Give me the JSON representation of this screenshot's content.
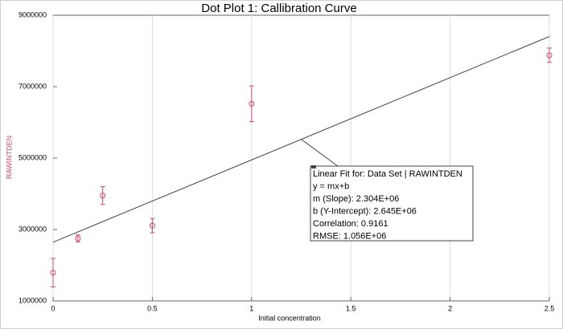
{
  "chart_data": {
    "type": "scatter",
    "title": "Dot Plot 1: Callibration Curve",
    "x_label": "Initial concentration",
    "y_label": "RAWINTDEN",
    "x": [
      0,
      0.125,
      0.25,
      0.5,
      1,
      2.5
    ],
    "series": [
      {
        "name": "RAWINTDEN",
        "color": "#e0446a",
        "values": [
          1790000,
          2750000,
          3950000,
          3110000,
          6520000,
          7880000
        ],
        "errors": [
          400000,
          100000,
          250000,
          200000,
          500000,
          200000
        ]
      }
    ],
    "xlim": [
      0,
      2.5
    ],
    "xticks": [
      0,
      0.5,
      1,
      1.5,
      2,
      2.5
    ],
    "ylim": [
      1000000,
      9000000
    ],
    "yticks": [
      1000000,
      3000000,
      5000000,
      7000000,
      9000000
    ],
    "grid": true,
    "fit": {
      "name": "Linear Fit for: Data Set | RAWINTDEN",
      "equation": "y = mx+b",
      "slope": 2304000,
      "slope_label": "m (Slope): 2.304E+06",
      "intercept": 2645000,
      "intercept_label": "b (Y-Intercept): 2.645E+06",
      "correlation_label": "Correlation: 0.9161",
      "rmse_label": "RMSE: 1.056E+06"
    }
  }
}
